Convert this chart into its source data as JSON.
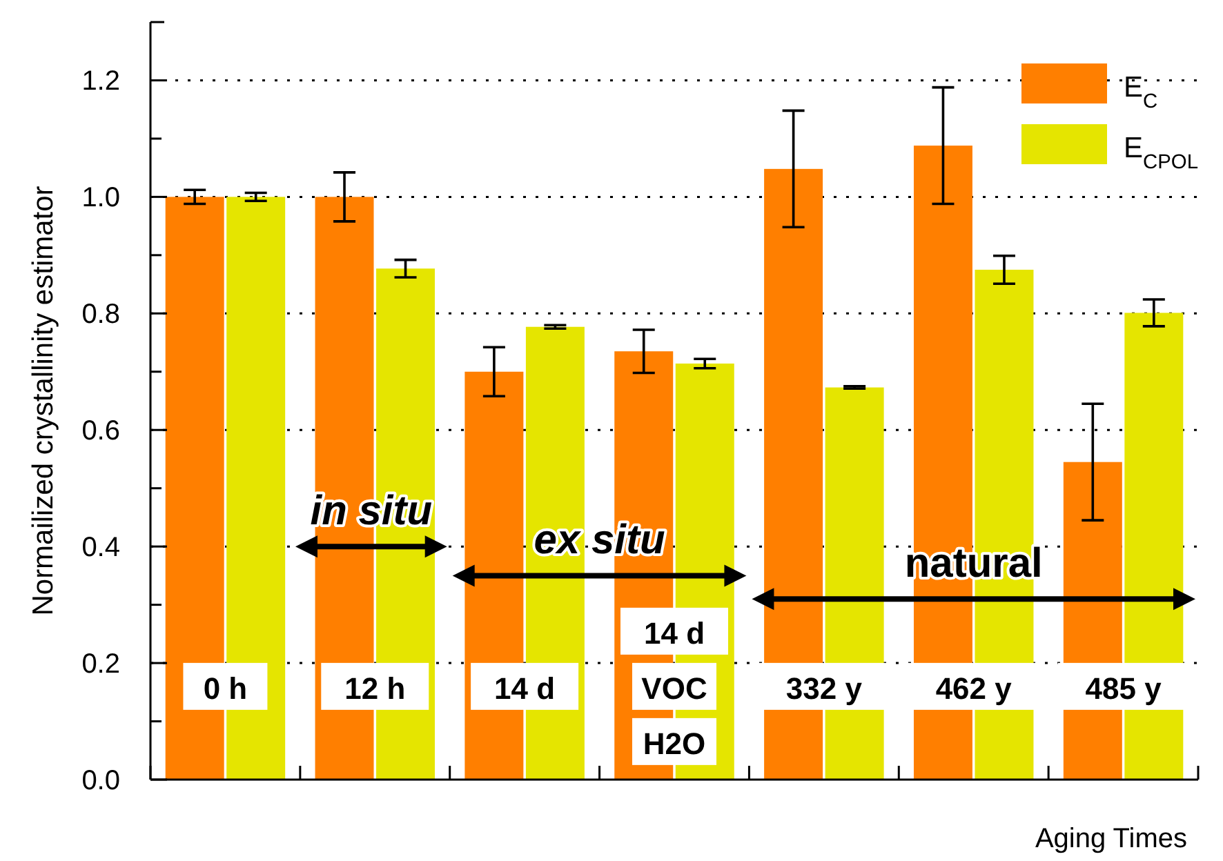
{
  "chart_data": {
    "type": "bar",
    "xlabel": "Aging Times",
    "ylabel": "Normailized crystallinity estimator",
    "categories": [
      "0 h",
      "12 h",
      "14 d",
      "14 d\nVOC\nH2O",
      "332 y",
      "462 y",
      "485 y"
    ],
    "series": [
      {
        "name": "E$_{C}$",
        "color": "#ff7f00",
        "values": [
          1.0,
          1.0,
          0.7,
          0.735,
          1.048,
          1.088,
          0.545
        ],
        "errors": [
          0.012,
          0.042,
          0.042,
          0.037,
          0.1,
          0.1,
          0.1
        ]
      },
      {
        "name": "E$_{CPOL}$",
        "color": "#e5e500",
        "values": [
          1.0,
          0.877,
          0.777,
          0.714,
          0.673,
          0.875,
          0.801
        ],
        "errors": [
          0.007,
          0.015,
          0.003,
          0.008,
          0.002,
          0.024,
          0.023
        ]
      }
    ],
    "ylim": [
      0,
      1.3
    ],
    "yticks": [
      {
        "value": 0,
        "label": "0.0"
      },
      {
        "value": 0.1,
        "label": null
      },
      {
        "value": 0.2,
        "label": "0.2"
      },
      {
        "value": 0.3,
        "label": null
      },
      {
        "value": 0.4,
        "label": "0.4"
      },
      {
        "value": 0.5,
        "label": null
      },
      {
        "value": 0.6,
        "label": "0.6"
      },
      {
        "value": 0.7,
        "label": null
      },
      {
        "value": 0.8,
        "label": "0.8"
      },
      {
        "value": 0.9,
        "label": null
      },
      {
        "value": 1.0,
        "label": "1.0"
      },
      {
        "value": 1.1,
        "label": null
      },
      {
        "value": 1.2,
        "label": "1.2"
      }
    ],
    "grid": "y",
    "legend": "top right",
    "annotations": [
      "in situ",
      "ex situ",
      "natural"
    ]
  }
}
